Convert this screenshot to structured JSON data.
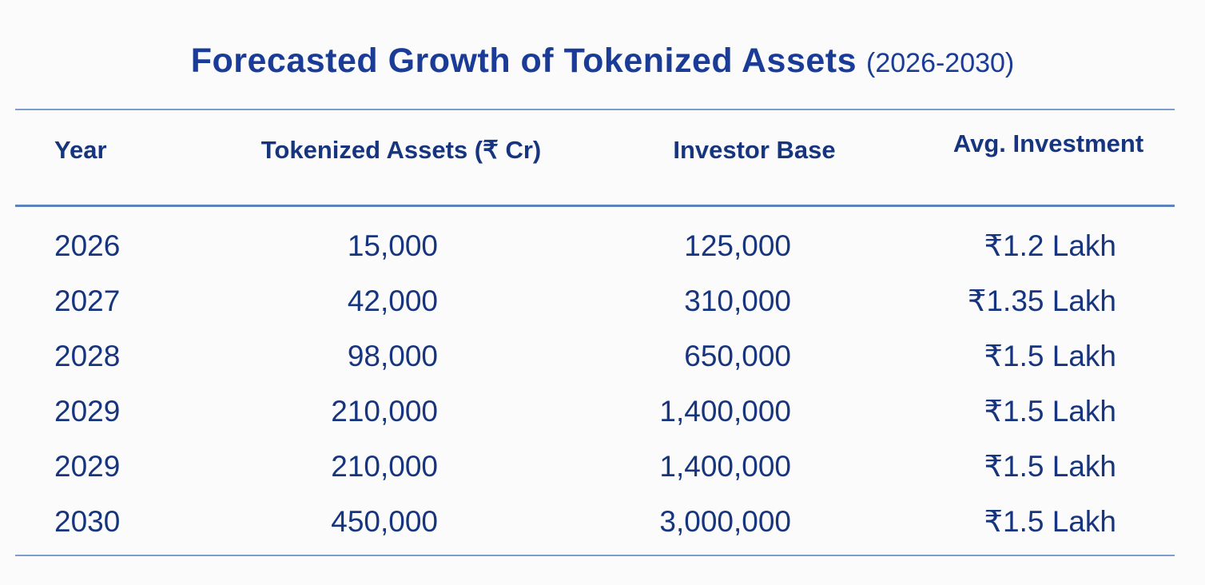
{
  "title": {
    "main": "Forecasted Growth of Tokenized Assets",
    "range": "(2026-2030)"
  },
  "table": {
    "columns": {
      "year": "Year",
      "tokenized_assets": "Tokenized Assets (₹ Cr)",
      "investor_base": "Investor Base",
      "avg_investment": "Avg. Investment"
    },
    "rows": [
      {
        "year": "2026",
        "tokenized_assets": "15,000",
        "investor_base": "125,000",
        "avg_investment": "₹1.2 Lakh"
      },
      {
        "year": "2027",
        "tokenized_assets": "42,000",
        "investor_base": "310,000",
        "avg_investment": "₹1.35 Lakh"
      },
      {
        "year": "2028",
        "tokenized_assets": "98,000",
        "investor_base": "650,000",
        "avg_investment": "₹1.5 Lakh"
      },
      {
        "year": "2029",
        "tokenized_assets": "210,000",
        "investor_base": "1,400,000",
        "avg_investment": "₹1.5 Lakh"
      },
      {
        "year": "2029",
        "tokenized_assets": "210,000",
        "investor_base": "1,400,000",
        "avg_investment": "₹1.5 Lakh"
      },
      {
        "year": "2030",
        "tokenized_assets": "450,000",
        "investor_base": "3,000,000",
        "avg_investment": "₹1.5 Lakh"
      }
    ]
  },
  "colors": {
    "title_text": "#1b3c96",
    "table_text": "#16357e",
    "rule_light": "#7e9ccc",
    "rule_medium": "#5d83bd",
    "background": "#fbfbfc"
  },
  "chart_data": {
    "type": "table",
    "title": "Forecasted Growth of Tokenized Assets (2026-2030)",
    "columns": [
      "Year",
      "Tokenized Assets (₹ Cr)",
      "Investor Base",
      "Avg. Investment"
    ],
    "rows": [
      [
        "2026",
        "15,000",
        "125,000",
        "₹1.2 Lakh"
      ],
      [
        "2027",
        "42,000",
        "310,000",
        "₹1.35 Lakh"
      ],
      [
        "2028",
        "98,000",
        "650,000",
        "₹1.5 Lakh"
      ],
      [
        "2029",
        "210,000",
        "1,400,000",
        "₹1.5 Lakh"
      ],
      [
        "2029",
        "210,000",
        "1,400,000",
        "₹1.5 Lakh"
      ],
      [
        "2030",
        "450,000",
        "3,000,000",
        "₹1.5 Lakh"
      ]
    ]
  }
}
